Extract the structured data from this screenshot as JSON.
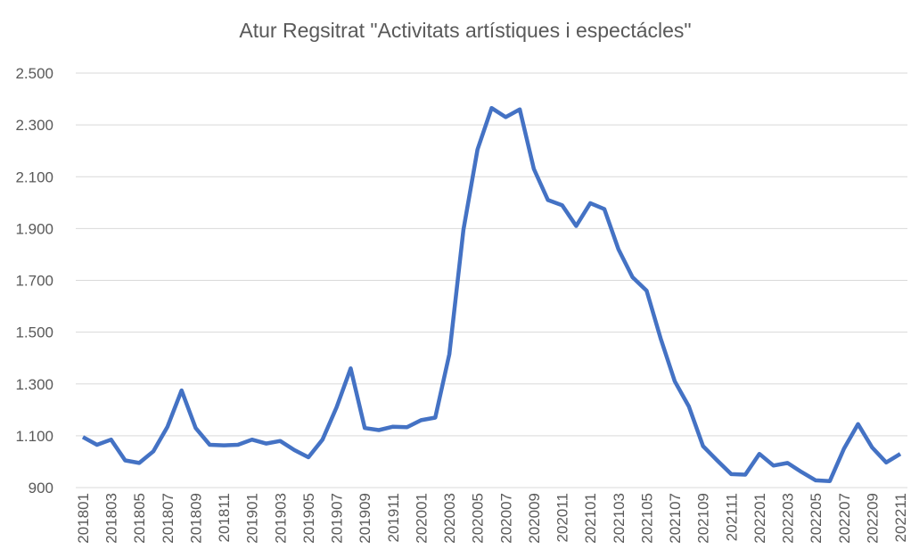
{
  "chart_data": {
    "type": "line",
    "title": "Atur Regsitrat \"Activitats artístiques i espectácles\"",
    "categories": [
      "201801",
      null,
      "201803",
      null,
      "201805",
      null,
      "201807",
      null,
      "201809",
      null,
      "201811",
      null,
      "201901",
      null,
      "201903",
      null,
      "201905",
      null,
      "201907",
      null,
      "201909",
      null,
      "201911",
      null,
      "202001",
      null,
      "202003",
      null,
      "202005",
      null,
      "202007",
      null,
      "202009",
      null,
      "202011",
      null,
      "202101",
      null,
      "202103",
      null,
      "202105",
      null,
      "202107",
      null,
      "202109",
      null,
      "202111",
      null,
      "202201",
      null,
      "202203",
      null,
      "202205",
      null,
      "202207",
      null,
      "202209",
      null,
      "202211"
    ],
    "series": [
      {
        "name": "Atur",
        "color": "#4472c4",
        "values": [
          1095,
          1065,
          1085,
          1005,
          995,
          1040,
          1135,
          1275,
          1130,
          1065,
          1063,
          1065,
          1085,
          1070,
          1080,
          1045,
          1017,
          1085,
          1210,
          1360,
          1130,
          1122,
          1135,
          1133,
          1160,
          1170,
          1415,
          1895,
          2205,
          2365,
          2330,
          2360,
          2130,
          2010,
          1990,
          1910,
          1998,
          1975,
          1820,
          1712,
          1660,
          1475,
          1310,
          1213,
          1060,
          1005,
          952,
          950,
          1030,
          985,
          995,
          960,
          928,
          925,
          1050,
          1145,
          1055,
          997,
          1030
        ]
      }
    ],
    "ylim": [
      900,
      2500
    ],
    "yticks": [
      900,
      {
        "value": 1100,
        "label": "1.100"
      },
      {
        "value": 1300,
        "label": "1.300"
      },
      {
        "value": 1500,
        "label": "1.500"
      },
      {
        "value": 1700,
        "label": "1.700"
      },
      {
        "value": 1900,
        "label": "1.900"
      },
      {
        "value": 2100,
        "label": "2.100"
      },
      {
        "value": 2300,
        "label": "2.300"
      },
      {
        "value": 2500,
        "label": "2.500"
      }
    ],
    "grid": true
  }
}
